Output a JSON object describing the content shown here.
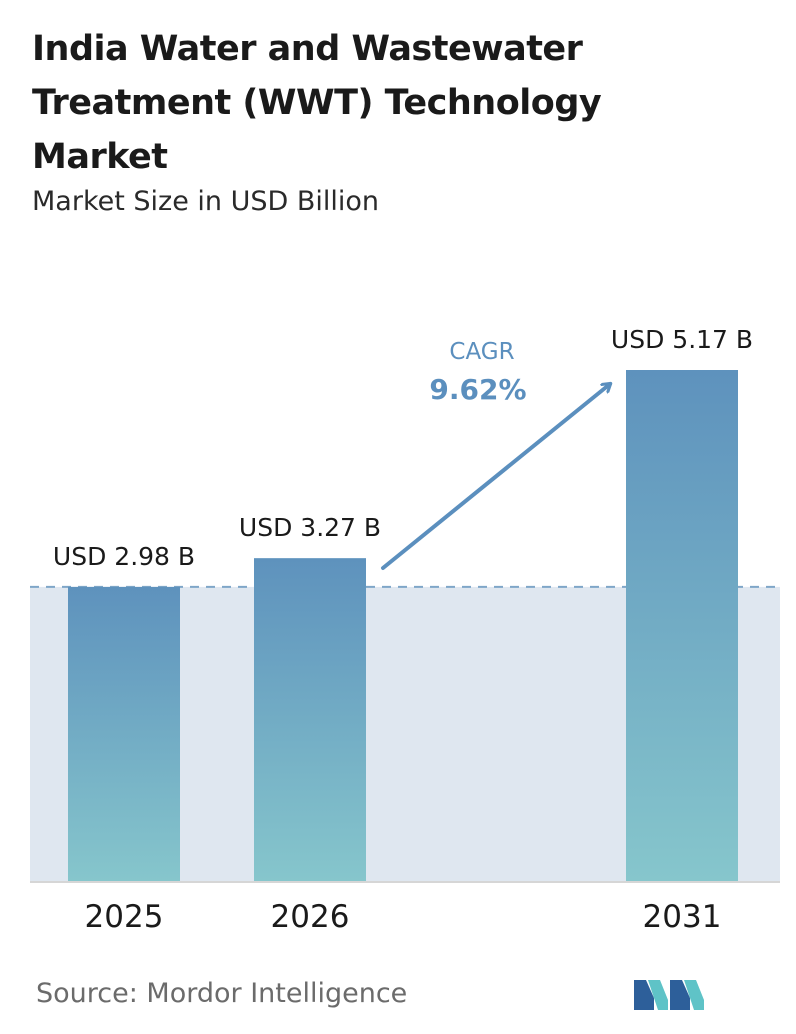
{
  "header": {
    "title": "India Water and Wastewater Treatment (WWT) Technology Market",
    "subtitle": "Market Size in USD Billion"
  },
  "footer": {
    "source": "Source: Mordor Intelligence",
    "logo_icon": "mordor-intelligence-logo-icon"
  },
  "colors": {
    "bar_top": "#5e92bd",
    "bar_bottom": "#86c6cc",
    "band": "#dfe7f0",
    "accent": "#5b8fbe",
    "axis": "#d6d6d6"
  },
  "chart_data": {
    "type": "bar",
    "title": "India Water and Wastewater Treatment (WWT) Technology Market",
    "subtitle": "Market Size in USD Billion",
    "categories": [
      "2025",
      "2026",
      "2031"
    ],
    "values": [
      2.98,
      3.27,
      5.17
    ],
    "value_labels": [
      "USD 2.98 B",
      "USD 3.27 B",
      "USD 5.17 B"
    ],
    "ylim": [
      0,
      5.17
    ],
    "reference_line": 2.98,
    "annotation": {
      "label": "CAGR",
      "value": "9.62%"
    },
    "grid": false,
    "legend": "none"
  }
}
